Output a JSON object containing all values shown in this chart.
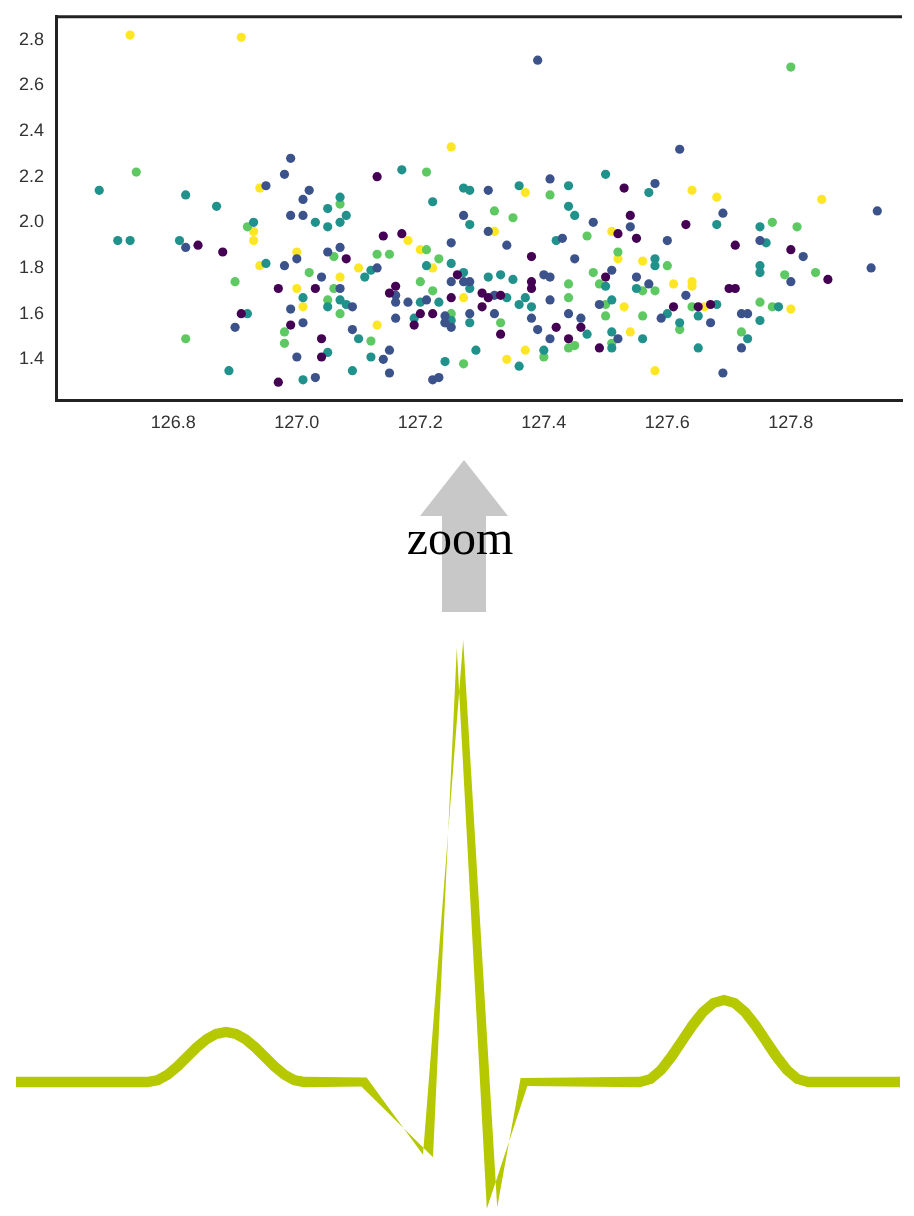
{
  "chart_data": {
    "type": "scatter",
    "marker": "circle",
    "annotations": [
      "zoom"
    ],
    "xlim": [
      126.61,
      127.98
    ],
    "ylim": [
      1.22,
      2.9
    ],
    "xticks": [
      126.8,
      {
        "value": 127,
        "label": "127.0"
      },
      127.2,
      127.4,
      127.6,
      127.8
    ],
    "yticks": [
      1.4,
      1.6,
      1.8,
      {
        "value": 2,
        "label": "2.0"
      },
      2.2,
      2.4,
      2.6,
      2.8
    ],
    "series": [
      {
        "color": "#440154",
        "x": [
          126.84,
          126.88,
          126.91,
          126.97,
          126.99,
          126.97,
          127.08,
          127.03,
          127.04,
          127.04,
          127.13,
          127.14,
          127.17,
          127.15,
          127.16,
          127.19,
          127.2,
          127.22,
          127.53,
          127.54,
          127.63,
          127.55,
          127.52,
          127.71,
          127.8,
          127.38,
          127.86,
          127.26,
          127.38,
          127.5,
          127.7,
          127.71,
          127.3,
          127.31,
          127.33,
          127.3,
          127.38,
          127.61,
          127.65,
          127.67,
          127.25,
          127.33,
          127.46,
          127.42,
          127.44,
          127.49
        ],
        "values": [
          1.9,
          1.87,
          1.6,
          1.71,
          1.55,
          1.3,
          1.84,
          1.71,
          1.49,
          1.41,
          2.2,
          1.94,
          1.95,
          1.69,
          1.72,
          1.55,
          1.6,
          1.6,
          2.15,
          2.03,
          1.99,
          1.93,
          1.95,
          1.9,
          1.88,
          1.85,
          1.75,
          1.77,
          1.74,
          1.76,
          1.71,
          1.71,
          1.69,
          1.67,
          1.68,
          1.63,
          1.71,
          1.63,
          1.63,
          1.64,
          1.67,
          1.51,
          1.54,
          1.54,
          1.49,
          1.45
        ]
      },
      {
        "color": "#3b528b",
        "x": [
          126.82,
          126.9,
          126.95,
          126.99,
          126.98,
          127.02,
          127.01,
          126.99,
          127.01,
          127,
          126.98,
          126.99,
          127,
          127.01,
          127.05,
          127.07,
          127.04,
          127.07,
          127.03,
          127.09,
          127.09,
          127.13,
          127.16,
          127.16,
          127.16,
          127.18,
          127.21,
          127.24,
          127.24,
          127.14,
          127.15,
          127.15,
          127.22,
          127.25,
          127.39,
          127.62,
          127.31,
          127.41,
          127.58,
          127.94,
          127.27,
          127.31,
          127.48,
          127.54,
          127.69,
          127.6,
          127.43,
          127.34,
          127.75,
          127.82,
          127.45,
          127.93,
          127.8,
          127.4,
          127.41,
          127.51,
          127.55,
          127.57,
          127.63,
          127.25,
          127.27,
          127.28,
          127.32,
          127.41,
          127.49,
          127.25,
          127.28,
          127.32,
          127.38,
          127.39,
          127.44,
          127.46,
          127.41,
          127.52,
          127.59,
          127.67,
          127.69,
          127.72,
          127.73,
          127.72,
          127.23
        ],
        "values": [
          1.89,
          1.54,
          2.16,
          2.28,
          2.21,
          2.14,
          2.1,
          2.03,
          2.03,
          1.84,
          1.81,
          1.62,
          1.41,
          1.56,
          1.87,
          1.89,
          1.76,
          1.71,
          1.32,
          1.63,
          1.53,
          1.8,
          1.68,
          1.65,
          1.58,
          1.65,
          1.66,
          1.59,
          1.56,
          1.4,
          1.44,
          1.34,
          1.31,
          1.91,
          2.71,
          2.32,
          2.14,
          2.19,
          2.17,
          2.05,
          2.03,
          1.96,
          2,
          1.98,
          2.04,
          1.92,
          1.93,
          1.9,
          1.92,
          1.85,
          1.84,
          1.8,
          1.74,
          1.77,
          1.76,
          1.79,
          1.76,
          1.73,
          1.68,
          1.74,
          1.74,
          1.74,
          1.68,
          1.66,
          1.64,
          1.54,
          1.6,
          1.6,
          1.58,
          1.53,
          1.6,
          1.58,
          1.49,
          1.49,
          1.58,
          1.56,
          1.34,
          1.6,
          1.6,
          1.45,
          1.32
        ]
      },
      {
        "color": "#21918c",
        "x": [
          126.68,
          126.71,
          126.73,
          126.82,
          126.87,
          126.81,
          126.89,
          126.92,
          126.93,
          126.95,
          127.01,
          127.01,
          127.03,
          127.05,
          127.05,
          127.07,
          127.07,
          127.08,
          127.05,
          127.07,
          127.08,
          127.05,
          127.1,
          127.09,
          127.11,
          127.17,
          127.22,
          127.12,
          127.19,
          127.2,
          127.21,
          127.23,
          127.12,
          127.27,
          127.28,
          127.36,
          127.44,
          127.5,
          127.57,
          127.44,
          127.45,
          127.28,
          127.68,
          127.75,
          127.76,
          127.42,
          127.58,
          127.58,
          127.75,
          127.75,
          127.25,
          127.27,
          127.31,
          127.33,
          127.35,
          127.5,
          127.55,
          127.28,
          127.34,
          127.37,
          127.36,
          127.38,
          127.51,
          127.68,
          127.78,
          127.25,
          127.24,
          127.28,
          127.47,
          127.51,
          127.51,
          127.6,
          127.62,
          127.65,
          127.65,
          127.56,
          127.75,
          127.73,
          127.29,
          127.24,
          127.36,
          127.4
        ],
        "values": [
          2.14,
          1.92,
          1.92,
          2.12,
          2.07,
          1.92,
          1.35,
          1.6,
          2,
          1.82,
          1.67,
          1.31,
          2,
          1.98,
          2.06,
          2.11,
          2,
          2.03,
          1.63,
          1.66,
          1.64,
          1.43,
          1.49,
          1.35,
          1.76,
          2.23,
          2.09,
          1.79,
          1.58,
          1.65,
          1.81,
          1.65,
          1.41,
          2.15,
          2.14,
          2.16,
          2.16,
          2.21,
          2.13,
          2.07,
          2.03,
          1.99,
          1.99,
          1.98,
          1.91,
          1.92,
          1.84,
          1.81,
          1.81,
          1.78,
          1.82,
          1.78,
          1.76,
          1.77,
          1.75,
          1.72,
          1.71,
          1.71,
          1.67,
          1.67,
          1.64,
          1.63,
          1.66,
          1.64,
          1.63,
          1.57,
          1.56,
          1.56,
          1.51,
          1.52,
          1.45,
          1.6,
          1.56,
          1.59,
          1.45,
          1.49,
          1.57,
          1.49,
          1.44,
          1.39,
          1.37,
          1.44
        ]
      },
      {
        "color": "#5ec962",
        "x": [
          126.74,
          126.82,
          126.9,
          126.92,
          126.98,
          126.98,
          127.07,
          127.06,
          127.02,
          127.06,
          127.05,
          127.07,
          127.21,
          127.13,
          127.15,
          127.21,
          127.2,
          127.22,
          127.12,
          127.8,
          127.32,
          127.41,
          127.35,
          127.77,
          127.81,
          127.47,
          127.52,
          127.6,
          127.84,
          127.79,
          127.23,
          127.44,
          127.48,
          127.49,
          127.56,
          127.58,
          127.44,
          127.5,
          127.64,
          127.75,
          127.77,
          127.25,
          127.33,
          127.5,
          127.51,
          127.45,
          127.44,
          127.56,
          127.62,
          127.72,
          127.27,
          127.4
        ],
        "values": [
          2.22,
          1.49,
          1.74,
          1.98,
          1.52,
          1.47,
          2.08,
          1.85,
          1.78,
          1.71,
          1.66,
          1.6,
          2.22,
          1.86,
          1.86,
          1.88,
          1.74,
          1.7,
          1.48,
          2.68,
          2.05,
          2.12,
          2.02,
          2,
          1.98,
          1.94,
          1.87,
          1.81,
          1.78,
          1.77,
          1.84,
          1.73,
          1.78,
          1.73,
          1.7,
          1.7,
          1.67,
          1.64,
          1.63,
          1.65,
          1.63,
          1.6,
          1.56,
          1.59,
          1.47,
          1.46,
          1.45,
          1.59,
          1.53,
          1.52,
          1.38,
          1.41
        ]
      },
      {
        "color": "#fde725",
        "x": [
          126.73,
          126.91,
          126.93,
          126.93,
          126.94,
          126.94,
          127,
          127,
          127.01,
          127.07,
          127.1,
          127.2,
          127.18,
          127.22,
          127.13,
          127.25,
          127.37,
          127.64,
          127.68,
          127.85,
          127.32,
          127.51,
          127.52,
          127.56,
          127.61,
          127.64,
          127.64,
          127.53,
          127.66,
          127.8,
          127.27,
          127.54,
          127.58,
          127.34,
          127.37
        ],
        "values": [
          2.82,
          2.81,
          1.96,
          1.92,
          2.15,
          1.81,
          1.87,
          1.71,
          1.63,
          1.76,
          1.8,
          1.88,
          1.92,
          1.8,
          1.55,
          2.33,
          2.13,
          2.14,
          2.11,
          2.1,
          1.96,
          1.96,
          1.84,
          1.83,
          1.73,
          1.74,
          1.72,
          1.63,
          1.63,
          1.62,
          1.67,
          1.52,
          1.35,
          1.4,
          1.44
        ]
      }
    ]
  }
}
